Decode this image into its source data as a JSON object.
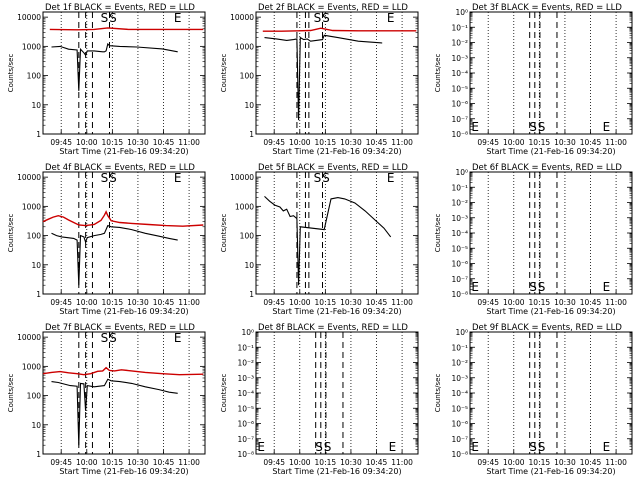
{
  "figure": {
    "background": "#ffffff",
    "events_color": "#000000",
    "lld_color": "#cc0000",
    "xlabel": "Start Time (21-Feb-16 09:34:20)",
    "ylabel": "Counts/sec",
    "x_tick_labels": [
      "09:45",
      "10:00",
      "10:15",
      "10:30",
      "10:45",
      "11:00"
    ]
  },
  "chart_data": [
    {
      "type": "line",
      "title": "Det 1f BLACK = Events, RED = LLD",
      "xlabel": "Start Time (21-Feb-16 09:34:20)",
      "ylabel": "Counts/sec",
      "scale": "log",
      "yticks": [
        "1",
        "10",
        "100",
        "1000",
        "10000"
      ],
      "ylim": [
        1,
        15000
      ],
      "x_unit": "minutes_after_09:34:20",
      "xlim": [
        0,
        95
      ],
      "grid": "dotted vertical",
      "markers": [
        {
          "label": "S",
          "x": 36
        },
        {
          "label": "S",
          "x": 41
        },
        {
          "label": "E",
          "x": 79
        }
      ],
      "dashed_lines": [
        21,
        25,
        29,
        39
      ],
      "series": [
        {
          "color": "red",
          "points": [
            [
              4,
              3800
            ],
            [
              20,
              3700
            ],
            [
              30,
              3800
            ],
            [
              38,
              4300
            ],
            [
              50,
              3800
            ],
            [
              94,
              3800
            ]
          ]
        },
        {
          "color": "black",
          "points": [
            [
              5,
              950
            ],
            [
              10,
              1000
            ],
            [
              15,
              800
            ],
            [
              20,
              750
            ],
            [
              21,
              30
            ],
            [
              22,
              800
            ],
            [
              24,
              600
            ],
            [
              25,
              500
            ],
            [
              26,
              700
            ],
            [
              30,
              700
            ],
            [
              35,
              650
            ],
            [
              36,
              650
            ],
            [
              37,
              700
            ],
            [
              38,
              1200
            ],
            [
              39,
              1050
            ],
            [
              45,
              1000
            ],
            [
              55,
              950
            ],
            [
              70,
              820
            ],
            [
              79,
              650
            ]
          ]
        }
      ]
    },
    {
      "type": "line",
      "title": "Det 2f BLACK = Events, RED = LLD",
      "xlabel": "Start Time (21-Feb-16 09:34:20)",
      "ylabel": "Counts/sec",
      "scale": "log",
      "yticks": [
        "1",
        "10",
        "100",
        "1000",
        "10000"
      ],
      "ylim": [
        1,
        15000
      ],
      "x_unit": "minutes_after_09:34:20",
      "xlim": [
        0,
        95
      ],
      "grid": "dotted vertical",
      "markers": [
        {
          "label": "S",
          "x": 36
        },
        {
          "label": "S",
          "x": 41
        },
        {
          "label": "E",
          "x": 79
        }
      ],
      "dashed_lines": [
        24,
        29,
        31,
        39
      ],
      "series": [
        {
          "color": "red",
          "points": [
            [
              4,
              3300
            ],
            [
              15,
              3300
            ],
            [
              25,
              3400
            ],
            [
              32,
              3500
            ],
            [
              38,
              4200
            ],
            [
              45,
              3500
            ],
            [
              60,
              3400
            ],
            [
              94,
              3400
            ]
          ]
        },
        {
          "color": "black",
          "points": [
            [
              5,
              2000
            ],
            [
              12,
              1800
            ],
            [
              18,
              1600
            ],
            [
              22,
              1700
            ],
            [
              24,
              1800
            ],
            [
              25,
              3
            ],
            [
              26,
              2000
            ],
            [
              28,
              1700
            ],
            [
              30,
              1800
            ],
            [
              32,
              1500
            ],
            [
              39,
              1700
            ],
            [
              40,
              2400
            ],
            [
              48,
              2000
            ],
            [
              60,
              1500
            ],
            [
              74,
              1300
            ]
          ]
        }
      ]
    },
    {
      "type": "line",
      "title": "Det 3f BLACK = Events, RED = LLD",
      "xlabel": "Start Time (21-Feb-16 09:34:20)",
      "ylabel": "Counts/sec",
      "scale": "log",
      "yticks": [
        "10⁰",
        "10⁻¹",
        "10⁻²",
        "10⁻³",
        "10⁻⁴",
        "10⁻⁵",
        "10⁻⁶",
        "10⁻⁷",
        "10⁻⁸"
      ],
      "ylim": [
        1e-08,
        1
      ],
      "x_unit": "minutes_after_09:34:20",
      "xlim": [
        0,
        95
      ],
      "grid": "dotted vertical",
      "markers": [
        {
          "label": "E",
          "x": 3
        },
        {
          "label": "S",
          "x": 37
        },
        {
          "label": "S",
          "x": 42
        },
        {
          "label": "E",
          "x": 80
        }
      ],
      "dashed_lines": [
        35,
        38,
        41,
        51
      ],
      "series": []
    },
    {
      "type": "line",
      "title": "Det 4f BLACK = Events, RED = LLD",
      "xlabel": "Start Time (21-Feb-16 09:34:20)",
      "ylabel": "Counts/sec",
      "scale": "log",
      "yticks": [
        "1",
        "10",
        "100",
        "1000",
        "10000"
      ],
      "ylim": [
        1,
        15000
      ],
      "x_unit": "minutes_after_09:34:20",
      "xlim": [
        0,
        95
      ],
      "grid": "dotted vertical",
      "markers": [
        {
          "label": "S",
          "x": 36
        },
        {
          "label": "S",
          "x": 41
        },
        {
          "label": "E",
          "x": 79
        }
      ],
      "dashed_lines": [
        21,
        25,
        29,
        39
      ],
      "series": [
        {
          "color": "red",
          "points": [
            [
              0,
              300
            ],
            [
              3,
              360
            ],
            [
              6,
              430
            ],
            [
              9,
              480
            ],
            [
              12,
              430
            ],
            [
              15,
              340
            ],
            [
              18,
              280
            ],
            [
              21,
              230
            ],
            [
              25,
              220
            ],
            [
              30,
              240
            ],
            [
              34,
              330
            ],
            [
              36,
              500
            ],
            [
              37,
              650
            ],
            [
              38,
              480
            ],
            [
              40,
              320
            ],
            [
              45,
              280
            ],
            [
              52,
              260
            ],
            [
              62,
              240
            ],
            [
              72,
              220
            ],
            [
              82,
              210
            ],
            [
              94,
              230
            ]
          ]
        },
        {
          "color": "black",
          "points": [
            [
              5,
              120
            ],
            [
              8,
              100
            ],
            [
              11,
              90
            ],
            [
              14,
              85
            ],
            [
              18,
              80
            ],
            [
              20,
              70
            ],
            [
              21,
              2
            ],
            [
              22,
              100
            ],
            [
              24,
              90
            ],
            [
              25,
              60
            ],
            [
              26,
              85
            ],
            [
              30,
              100
            ],
            [
              34,
              110
            ],
            [
              36,
              120
            ],
            [
              38,
              220
            ],
            [
              40,
              200
            ],
            [
              45,
              190
            ],
            [
              52,
              160
            ],
            [
              60,
              120
            ],
            [
              68,
              95
            ],
            [
              74,
              80
            ],
            [
              79,
              70
            ]
          ]
        }
      ]
    },
    {
      "type": "line",
      "title": "Det 5f BLACK = Events, RED = LLD",
      "xlabel": "Start Time (21-Feb-16 09:34:20)",
      "ylabel": "Counts/sec",
      "scale": "log",
      "yticks": [
        "1",
        "10",
        "100",
        "1000",
        "10000"
      ],
      "ylim": [
        1,
        15000
      ],
      "x_unit": "minutes_after_09:34:20",
      "xlim": [
        0,
        95
      ],
      "grid": "dotted vertical",
      "markers": [
        {
          "label": "S",
          "x": 36
        },
        {
          "label": "S",
          "x": 41
        },
        {
          "label": "E",
          "x": 79
        }
      ],
      "dashed_lines": [
        24,
        29,
        31,
        39
      ],
      "series": [
        {
          "color": "black",
          "points": [
            [
              5,
              2200
            ],
            [
              8,
              1500
            ],
            [
              11,
              1100
            ],
            [
              14,
              950
            ],
            [
              16,
              700
            ],
            [
              18,
              800
            ],
            [
              20,
              450
            ],
            [
              22,
              480
            ],
            [
              24,
              380
            ],
            [
              25,
              2
            ],
            [
              26,
              200
            ],
            [
              40,
              160
            ],
            [
              44,
              1800
            ],
            [
              48,
              2000
            ],
            [
              52,
              1800
            ],
            [
              58,
              1300
            ],
            [
              64,
              700
            ],
            [
              70,
              330
            ],
            [
              75,
              180
            ],
            [
              79,
              90
            ]
          ]
        }
      ]
    },
    {
      "type": "line",
      "title": "Det 6f BLACK = Events, RED = LLD",
      "xlabel": "Start Time (21-Feb-16 09:34:20)",
      "ylabel": "Counts/sec",
      "scale": "log",
      "yticks": [
        "10⁰",
        "10⁻¹",
        "10⁻²",
        "10⁻³",
        "10⁻⁴",
        "10⁻⁵",
        "10⁻⁶",
        "10⁻⁷",
        "10⁻⁸"
      ],
      "ylim": [
        1e-08,
        1
      ],
      "x_unit": "minutes_after_09:34:20",
      "xlim": [
        0,
        95
      ],
      "grid": "dotted vertical",
      "markers": [
        {
          "label": "E",
          "x": 3
        },
        {
          "label": "S",
          "x": 37
        },
        {
          "label": "S",
          "x": 42
        },
        {
          "label": "E",
          "x": 80
        }
      ],
      "dashed_lines": [
        35,
        38,
        41,
        51
      ],
      "series": []
    },
    {
      "type": "line",
      "title": "Det 7f BLACK = Events, RED = LLD",
      "xlabel": "Start Time (21-Feb-16 09:34:20)",
      "ylabel": "Counts/sec",
      "scale": "log",
      "yticks": [
        "1",
        "10",
        "100",
        "1000",
        "10000"
      ],
      "ylim": [
        1,
        15000
      ],
      "x_unit": "minutes_after_09:34:20",
      "xlim": [
        0,
        95
      ],
      "grid": "dotted vertical",
      "markers": [
        {
          "label": "S",
          "x": 36
        },
        {
          "label": "S",
          "x": 41
        },
        {
          "label": "E",
          "x": 79
        }
      ],
      "dashed_lines": [
        21,
        25,
        29,
        39
      ],
      "series": [
        {
          "color": "red",
          "points": [
            [
              0,
              560
            ],
            [
              5,
              620
            ],
            [
              10,
              660
            ],
            [
              15,
              600
            ],
            [
              20,
              560
            ],
            [
              24,
              520
            ],
            [
              28,
              560
            ],
            [
              32,
              680
            ],
            [
              35,
              700
            ],
            [
              37,
              900
            ],
            [
              39,
              720
            ],
            [
              42,
              700
            ],
            [
              46,
              760
            ],
            [
              52,
              700
            ],
            [
              60,
              620
            ],
            [
              70,
              560
            ],
            [
              80,
              520
            ],
            [
              94,
              540
            ]
          ]
        },
        {
          "color": "black",
          "points": [
            [
              5,
              300
            ],
            [
              9,
              280
            ],
            [
              12,
              250
            ],
            [
              16,
              220
            ],
            [
              20,
              210
            ],
            [
              21,
              2
            ],
            [
              22,
              260
            ],
            [
              24,
              250
            ],
            [
              25,
              30
            ],
            [
              26,
              220
            ],
            [
              30,
              200
            ],
            [
              36,
              220
            ],
            [
              38,
              360
            ],
            [
              40,
              320
            ],
            [
              45,
              300
            ],
            [
              52,
              260
            ],
            [
              60,
              200
            ],
            [
              68,
              160
            ],
            [
              74,
              130
            ],
            [
              79,
              120
            ]
          ]
        }
      ]
    },
    {
      "type": "line",
      "title": "Det 8f BLACK = Events, RED = LLD",
      "xlabel": "Start Time (21-Feb-16 09:34:20)",
      "ylabel": "Counts/sec",
      "scale": "log",
      "yticks": [
        "10⁰",
        "10⁻¹",
        "10⁻²",
        "10⁻³",
        "10⁻⁴",
        "10⁻⁵",
        "10⁻⁶",
        "10⁻⁷",
        "10⁻⁸"
      ],
      "ylim": [
        1e-08,
        1
      ],
      "x_unit": "minutes_after_09:34:20",
      "xlim": [
        0,
        95
      ],
      "grid": "dotted vertical",
      "markers": [
        {
          "label": "E",
          "x": 3
        },
        {
          "label": "S",
          "x": 37
        },
        {
          "label": "S",
          "x": 42
        },
        {
          "label": "E",
          "x": 80
        }
      ],
      "dashed_lines": [
        35,
        38,
        41,
        51
      ],
      "series": []
    },
    {
      "type": "line",
      "title": "Det 9f BLACK = Events, RED = LLD",
      "xlabel": "Start Time (21-Feb-16 09:34:20)",
      "ylabel": "Counts/sec",
      "scale": "log",
      "yticks": [
        "10⁰",
        "10⁻¹",
        "10⁻²",
        "10⁻³",
        "10⁻⁴",
        "10⁻⁵",
        "10⁻⁶",
        "10⁻⁷",
        "10⁻⁸"
      ],
      "ylim": [
        1e-08,
        1
      ],
      "x_unit": "minutes_after_09:34:20",
      "xlim": [
        0,
        95
      ],
      "grid": "dotted vertical",
      "markers": [
        {
          "label": "E",
          "x": 3
        },
        {
          "label": "S",
          "x": 37
        },
        {
          "label": "S",
          "x": 42
        },
        {
          "label": "E",
          "x": 80
        }
      ],
      "dashed_lines": [
        35,
        38,
        41,
        51
      ],
      "series": []
    }
  ]
}
